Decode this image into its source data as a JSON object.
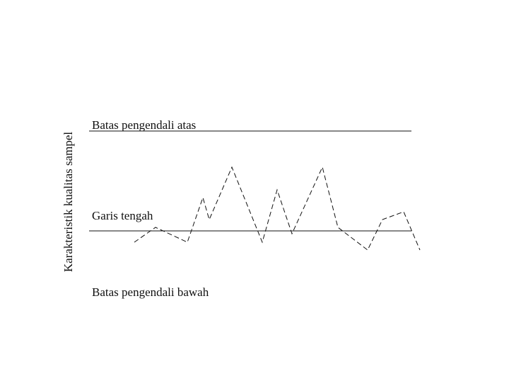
{
  "diagram": {
    "y_axis_label": "Karakteristik kualitas sampel",
    "upper_limit_label": "Batas pengendali atas",
    "center_line_label": "Garis tengah",
    "lower_limit_label": "Batas pengendali bawah"
  }
}
